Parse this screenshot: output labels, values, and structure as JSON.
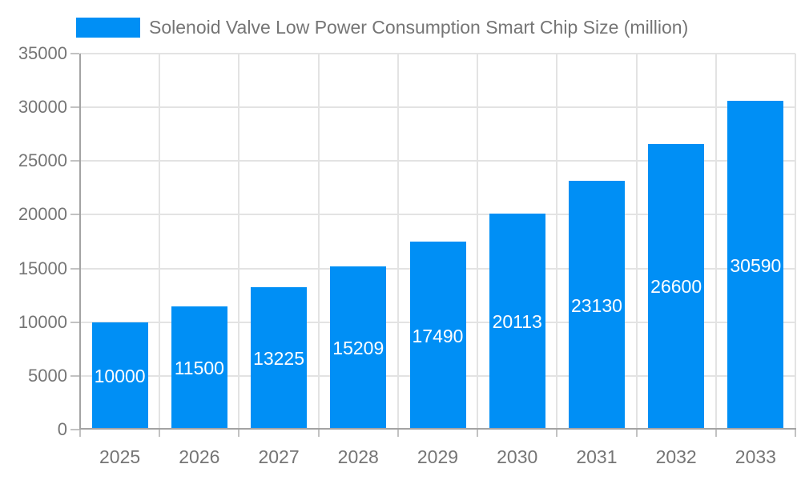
{
  "legend": {
    "label": "Solenoid Valve Low Power Consumption Smart Chip Size (million)"
  },
  "colors": {
    "bar": "#008FF5",
    "text": "#757575",
    "value_label": "#FFFFFF",
    "grid": "#E3E3E3",
    "axis": "#A3A3A3",
    "tick": "#C2C2C2"
  },
  "chart_data": {
    "type": "bar",
    "title": "Solenoid Valve Low Power Consumption Smart Chip Size (million)",
    "categories": [
      "2025",
      "2026",
      "2027",
      "2028",
      "2029",
      "2030",
      "2031",
      "2032",
      "2033"
    ],
    "series": [
      {
        "name": "Solenoid Valve Low Power Consumption Smart Chip Size (million)",
        "values": [
          10000,
          11500,
          13225,
          15209,
          17490,
          20113,
          23130,
          26600,
          30590
        ]
      }
    ],
    "xlabel": "",
    "ylabel": "",
    "ylim": [
      0,
      35000
    ],
    "ytick_step": 5000,
    "ytick_labels": [
      "0",
      "5000",
      "10000",
      "15000",
      "20000",
      "25000",
      "30000",
      "35000"
    ],
    "grid": true,
    "legend_position": "top-left",
    "value_labels_position": "inside-center",
    "bar_color": "#008FF5"
  }
}
